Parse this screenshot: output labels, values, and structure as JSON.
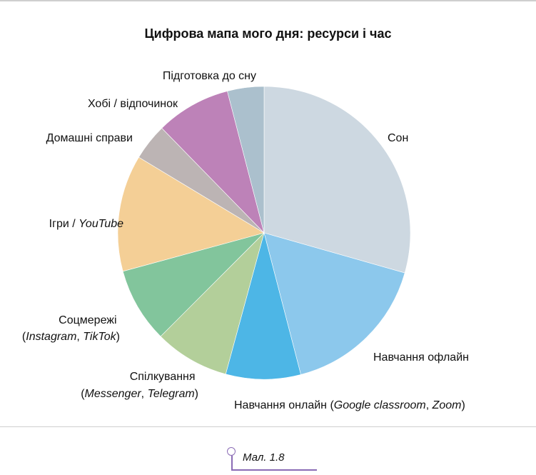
{
  "chart_data": {
    "type": "pie",
    "title": "Цифрова мапа мого дня: ресурси і час",
    "slices": [
      {
        "label": "Сон",
        "value": 8,
        "color": "#cdd8e1"
      },
      {
        "label": "Навчання офлайн",
        "value": 4.5,
        "color": "#8cc8ec"
      },
      {
        "label": "Навчання онлайн (Google classroom, Zoom)",
        "value": 2.25,
        "color": "#4db6e6"
      },
      {
        "label": "Спілкування (Messenger, Telegram)",
        "value": 2.25,
        "color": "#b3cf9a"
      },
      {
        "label": "Соцмережі (Instagram, TikTok)",
        "value": 2.25,
        "color": "#82c59c"
      },
      {
        "label": "Ігри / YouTube",
        "value": 3.5,
        "color": "#f4cf96"
      },
      {
        "label": "Домашні справи",
        "value": 1.1,
        "color": "#bcb4b4"
      },
      {
        "label": "Хобі / відпочинок",
        "value": 2.25,
        "color": "#bd82b8"
      },
      {
        "label": "Підготовка до сну",
        "value": 1.1,
        "color": "#abc0cd"
      }
    ]
  },
  "labels": {
    "son": "Сон",
    "offline": "Навчання офлайн",
    "online_prefix": "Навчання онлайн (",
    "online_google": "Google classroom",
    "online_comma": ", ",
    "online_zoom": "Zoom",
    "online_suffix": ")",
    "comm_line1": "Спілкування",
    "comm_open": "(",
    "comm_messenger": "Messenger",
    "comm_comma": ", ",
    "comm_telegram": "Telegram",
    "comm_close": ")",
    "social_line1": "Соцмережі",
    "social_open": "(",
    "social_instagram": "Instagram",
    "social_comma": ", ",
    "social_tiktok": "TikTok",
    "social_close": ")",
    "games_prefix": "Ігри / ",
    "games_youtube": "YouTube",
    "home": "Домашні справи",
    "hobby": "Хобі / відпочинок",
    "sleep_prep": "Підготовка до сну"
  },
  "caption": "Мал. 1.8"
}
